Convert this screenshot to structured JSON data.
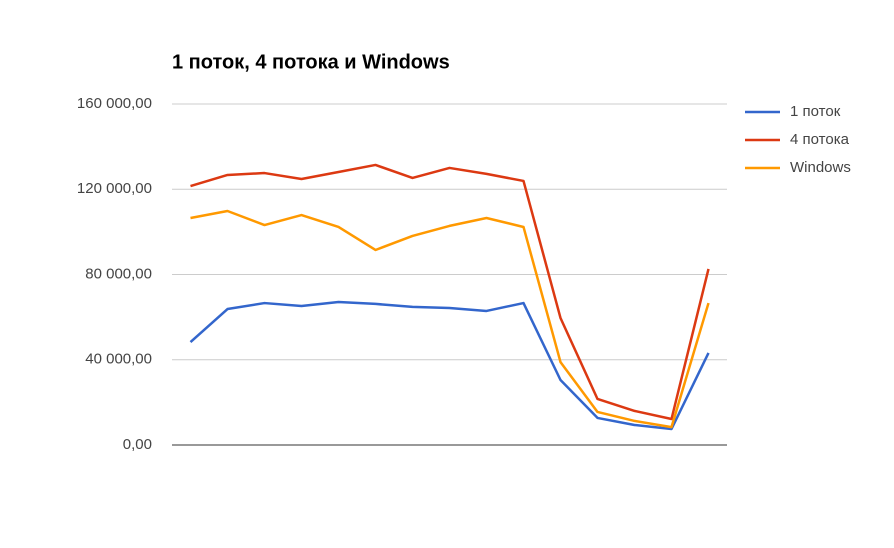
{
  "chart_data": {
    "type": "line",
    "title": "1 поток, 4 потока и Windows",
    "categories": [
      null,
      null,
      null,
      null,
      null,
      null,
      null,
      null,
      null,
      null,
      null,
      null,
      null,
      null,
      null
    ],
    "series": [
      {
        "name": "1 поток",
        "color": "#3366cc",
        "values": [
          48300,
          63800,
          66600,
          65200,
          67100,
          66200,
          64800,
          64300,
          62900,
          66600,
          30500,
          12700,
          9400,
          7500,
          43200
        ]
      },
      {
        "name": "4 потока",
        "color": "#dc3912",
        "values": [
          121500,
          126700,
          127600,
          124800,
          128100,
          131400,
          125300,
          130000,
          127200,
          123900,
          59600,
          21600,
          16000,
          12200,
          82600
        ]
      },
      {
        "name": "Windows",
        "color": "#ff9900",
        "values": [
          106500,
          109800,
          103200,
          107900,
          102300,
          91500,
          98100,
          102800,
          106500,
          102300,
          38900,
          15500,
          11300,
          8400,
          66600
        ]
      }
    ],
    "ylim": [
      0,
      160000
    ],
    "yticks": [
      {
        "value": 0,
        "label": "0,00"
      },
      {
        "value": 40000,
        "label": "40 000,00"
      },
      {
        "value": 80000,
        "label": "80 000,00"
      },
      {
        "value": 120000,
        "label": "120 000,00"
      },
      {
        "value": 160000,
        "label": "160 000,00"
      }
    ],
    "grid": true,
    "legend": "right"
  }
}
